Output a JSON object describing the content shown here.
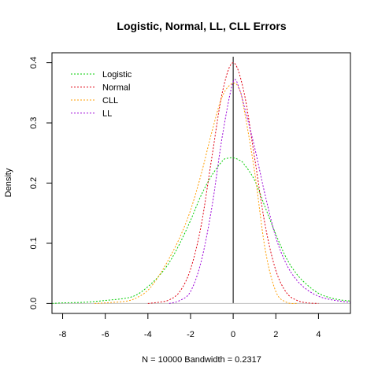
{
  "chart_data": {
    "type": "line",
    "title": "Logistic, Normal, LL, CLL Errors",
    "xlabel": "N = 10000   Bandwidth = 0.2317",
    "ylabel": "Density",
    "xlim": [
      -8.5,
      5.5
    ],
    "ylim": [
      -0.0165,
      0.4165
    ],
    "x_ticks": [
      -8,
      -6,
      -4,
      -2,
      0,
      2,
      4
    ],
    "y_ticks": [
      0.0,
      0.1,
      0.2,
      0.3,
      0.4
    ],
    "x_tick_labels": [
      "-8",
      "-6",
      "-4",
      "-2",
      "0",
      "2",
      "4"
    ],
    "y_tick_labels": [
      "0.0",
      "0.1",
      "0.2",
      "0.3",
      "0.4"
    ],
    "grid": false,
    "legend_position": "top-left",
    "reference_lines": [
      {
        "orientation": "vertical",
        "x": 0,
        "y_range": [
          0,
          0.41
        ],
        "color": "#000000"
      },
      {
        "orientation": "horizontal",
        "y": 0,
        "color": "#bebebe"
      }
    ],
    "series": [
      {
        "name": "Logistic",
        "color": "#00cd00",
        "x": [
          -8.5,
          -8,
          -7,
          -6,
          -5,
          -4.5,
          -4,
          -3.5,
          -3,
          -2.5,
          -2,
          -1.5,
          -1,
          -0.5,
          -0.3,
          0,
          0.3,
          0.5,
          1,
          1.5,
          2,
          2.5,
          3,
          3.5,
          4,
          4.5,
          5,
          5.5
        ],
        "y": [
          0.0,
          0.001,
          0.002,
          0.005,
          0.009,
          0.015,
          0.028,
          0.045,
          0.068,
          0.1,
          0.138,
          0.18,
          0.213,
          0.237,
          0.241,
          0.242,
          0.238,
          0.232,
          0.205,
          0.16,
          0.115,
          0.075,
          0.048,
          0.03,
          0.017,
          0.01,
          0.006,
          0.004
        ]
      },
      {
        "name": "Normal",
        "color": "#e0000f",
        "x": [
          -4,
          -3.5,
          -3,
          -2.5,
          -2,
          -1.5,
          -1,
          -0.5,
          0,
          0.5,
          1,
          1.5,
          2,
          2.5,
          3,
          3.5,
          4
        ],
        "y": [
          0.0,
          0.002,
          0.006,
          0.02,
          0.057,
          0.13,
          0.243,
          0.352,
          0.4,
          0.352,
          0.243,
          0.13,
          0.055,
          0.018,
          0.005,
          0.001,
          0.0
        ]
      },
      {
        "name": "CLL",
        "color": "#ff9d00",
        "x": [
          -6.5,
          -6,
          -5,
          -4.5,
          -4,
          -3.5,
          -3,
          -2.5,
          -2,
          -1.5,
          -1,
          -0.5,
          0,
          0.3,
          0.5,
          1,
          1.5,
          2,
          2.5,
          3
        ],
        "y": [
          0.0,
          0.001,
          0.004,
          0.01,
          0.022,
          0.045,
          0.075,
          0.11,
          0.155,
          0.215,
          0.285,
          0.345,
          0.366,
          0.355,
          0.325,
          0.22,
          0.09,
          0.02,
          0.002,
          0.0
        ]
      },
      {
        "name": "LL",
        "color": "#9b00d8",
        "x": [
          -3,
          -2.5,
          -2,
          -1.5,
          -1,
          -0.5,
          0,
          0.3,
          0.5,
          1,
          1.5,
          2,
          2.5,
          3,
          3.5,
          4,
          4.5,
          5,
          5.5
        ],
        "y": [
          0.0,
          0.005,
          0.02,
          0.07,
          0.16,
          0.28,
          0.368,
          0.355,
          0.33,
          0.26,
          0.18,
          0.11,
          0.065,
          0.038,
          0.022,
          0.012,
          0.007,
          0.004,
          0.002
        ]
      }
    ]
  }
}
